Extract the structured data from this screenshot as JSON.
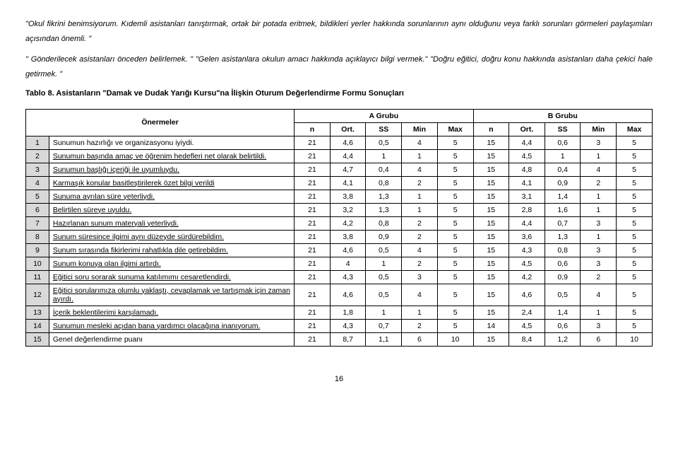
{
  "paragraphs": {
    "p1_pre_italic": "\"Okul fikrini benimsiyorum. Kıdemli asistanları tanıştırmak, ortak bir potada eritmek, bildikleri yerler hakkında sorunlarının aynı olduğunu veya farklı sorunları görmeleri paylaşımları açısından önemli. \"",
    "p2": "\" Gönderilecek asistanları önceden belirlemek. \" \"Gelen asistanlara okulun amacı hakkında açıklayıcı bilgi vermek.\" \"Doğru eğitici, doğru konu hakkında asistanları daha çekici hale getirmek. \""
  },
  "table_caption": "Tablo 8. Asistanların \"Damak ve Dudak Yarığı Kursu\"na İlişkin Oturum Değerlendirme Formu Sonuçları",
  "headers": {
    "onermeler": "Önermeler",
    "groupA": "A Grubu",
    "groupB": "B Grubu",
    "cols": [
      "n",
      "Ort.",
      "SS",
      "Min",
      "Max",
      "n",
      "Ort.",
      "SS",
      "Min",
      "Max"
    ]
  },
  "rows": [
    {
      "idx": "1",
      "desc": "Sunumun hazırlığı  ve organizasyonu iyiydi.",
      "v": [
        "21",
        "4,6",
        "0,5",
        "4",
        "5",
        "15",
        "4,4",
        "0,6",
        "3",
        "5"
      ],
      "u": false
    },
    {
      "idx": "2",
      "desc": "Sunumun başında amaç ve öğrenim hedefleri net olarak belirtildi.",
      "v": [
        "21",
        "4,4",
        "1",
        "1",
        "5",
        "15",
        "4,5",
        "1",
        "1",
        "5"
      ],
      "u": true
    },
    {
      "idx": "3",
      "desc": "Sunumun başlığı içeriği ile uyumluydu.",
      "v": [
        "21",
        "4,7",
        "0,4",
        "4",
        "5",
        "15",
        "4,8",
        "0,4",
        "4",
        "5"
      ],
      "u": true
    },
    {
      "idx": "4",
      "desc": "Karmaşık konular basitleştirilerek özet bilgi verildi",
      "v": [
        "21",
        "4,1",
        "0,8",
        "2",
        "5",
        "15",
        "4,1",
        "0,9",
        "2",
        "5"
      ],
      "u": true
    },
    {
      "idx": "5",
      "desc": "Sunuma ayrılan süre yeterliydi.",
      "v": [
        "21",
        "3,8",
        "1,3",
        "1",
        "5",
        "15",
        "3,1",
        "1,4",
        "1",
        "5"
      ],
      "u": true
    },
    {
      "idx": "6",
      "desc": "Belirtilen süreye uyuldu.",
      "v": [
        "21",
        "3,2",
        "1,3",
        "1",
        "5",
        "15",
        "2,8",
        "1,6",
        "1",
        "5"
      ],
      "u": true
    },
    {
      "idx": "7",
      "desc": "Hazırlanan sunum materyali yeterliydi.",
      "v": [
        "21",
        "4,2",
        "0,8",
        "2",
        "5",
        "15",
        "4,4",
        "0,7",
        "3",
        "5"
      ],
      "u": true
    },
    {
      "idx": "8",
      "desc": "Sunum süresince ilgimi aynı düzeyde sürdürebildim.",
      "v": [
        "21",
        "3,8",
        "0,9",
        "2",
        "5",
        "15",
        "3,6",
        "1,3",
        "1",
        "5"
      ],
      "u": true
    },
    {
      "idx": "9",
      "desc": "Sunum sırasında fikirlerimi rahatlıkla dile getirebildim.",
      "v": [
        "21",
        "4,6",
        "0,5",
        "4",
        "5",
        "15",
        "4,3",
        "0,8",
        "3",
        "5"
      ],
      "u": true
    },
    {
      "idx": "10",
      "desc": "Sunum konuya olan ilgimi artırdı.",
      "v": [
        "21",
        "4",
        "1",
        "2",
        "5",
        "15",
        "4,5",
        "0,6",
        "3",
        "5"
      ],
      "u": true
    },
    {
      "idx": "11",
      "desc": "Eğitici soru sorarak sunuma katılımımı cesaretlendirdi.",
      "v": [
        "21",
        "4,3",
        "0,5",
        "3",
        "5",
        "15",
        "4,2",
        "0,9",
        "2",
        "5"
      ],
      "u": true
    },
    {
      "idx": "12",
      "desc": "Eğitici sorularımıza olumlu yaklaştı, cevaplamak ve tartışmak için zaman ayırdı.",
      "v": [
        "21",
        "4,6",
        "0,5",
        "4",
        "5",
        "15",
        "4,6",
        "0,5",
        "4",
        "5"
      ],
      "u": true
    },
    {
      "idx": "13",
      "desc": "İçerik beklentilerimi karşılamadı.",
      "v": [
        "21",
        "1,8",
        "1",
        "1",
        "5",
        "15",
        "2,4",
        "1,4",
        "1",
        "5"
      ],
      "u": true
    },
    {
      "idx": "14",
      "desc": "Sunumun mesleki açıdan bana yardımcı olacağına inanıyorum.",
      "v": [
        "21",
        "4,3",
        "0,7",
        "2",
        "5",
        "14",
        "4,5",
        "0,6",
        "3",
        "5"
      ],
      "u": true
    },
    {
      "idx": "15",
      "desc": "Genel değerlendirme puanı",
      "v": [
        "21",
        "8,7",
        "1,1",
        "6",
        "10",
        "15",
        "8,4",
        "1,2",
        "6",
        "10"
      ],
      "u": false
    }
  ],
  "page_number": "16",
  "table_style": {
    "idx_bg": "#d9d9d9",
    "border_color": "#000000",
    "font_size": 10.5,
    "num_col_width": 40
  }
}
